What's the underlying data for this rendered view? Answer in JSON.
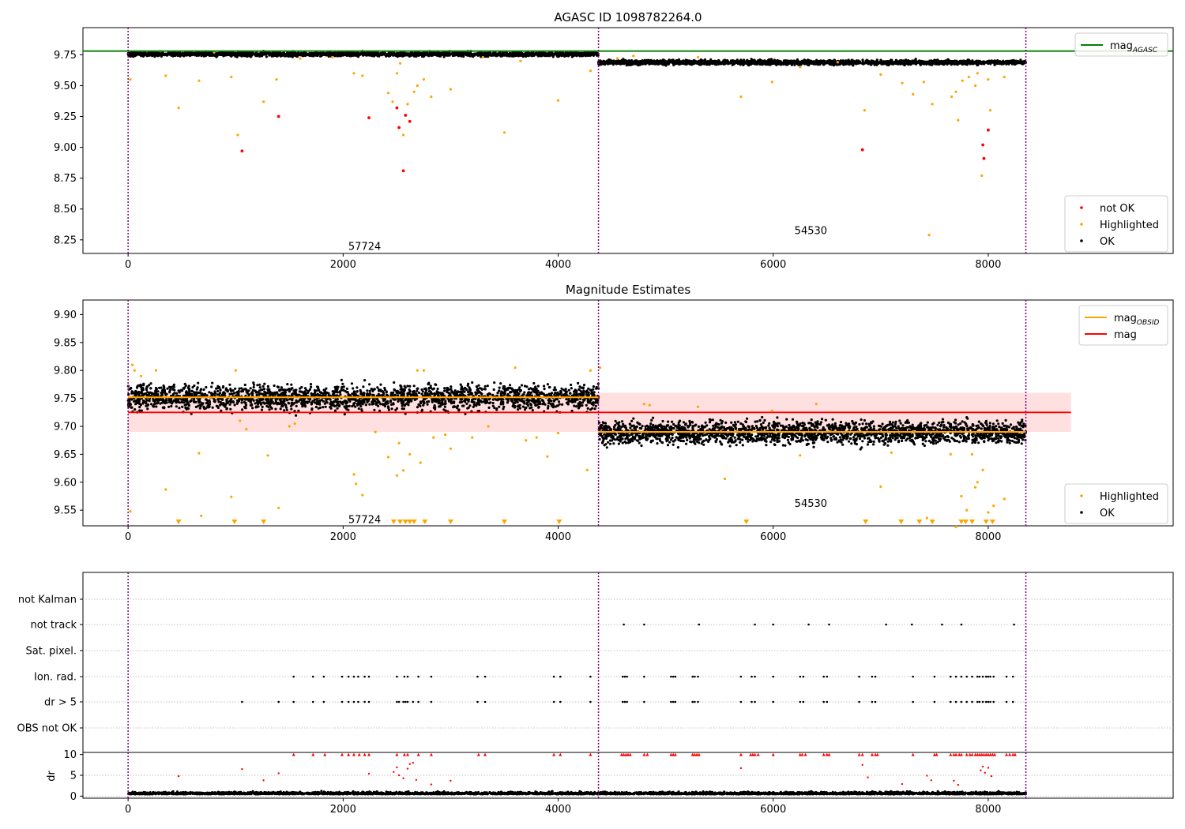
{
  "chart_data": [
    {
      "type": "scatter",
      "title": "AGASC ID 1098782264.0",
      "xlim": [
        -420,
        9720
      ],
      "ylim": [
        8.14,
        9.97
      ],
      "xticks": [
        0,
        2000,
        4000,
        6000,
        8000
      ],
      "yticks": [
        8.25,
        8.5,
        8.75,
        9.0,
        9.25,
        9.5,
        9.75
      ],
      "ytick_labels": [
        "8.25",
        "8.50",
        "8.75",
        "9.00",
        "9.25",
        "9.50",
        "9.75"
      ],
      "obsid_boundaries": [
        0,
        4375,
        8350
      ],
      "obsid_labels": [
        {
          "text": "57724",
          "x": 2200,
          "y": 8.2
        },
        {
          "text": "54530",
          "x": 6350,
          "y": 8.33
        }
      ],
      "hlines": [
        {
          "name": "mag_AGASC",
          "y": 9.78,
          "color": "#008000"
        }
      ],
      "bands": [
        {
          "x": [
            0,
            4375
          ],
          "center": 9.755,
          "spread": 0.012
        },
        {
          "x": [
            4375,
            8350
          ],
          "center": 9.688,
          "spread": 0.013
        }
      ],
      "highlighted_points": [
        [
          20,
          9.55
        ],
        [
          350,
          9.58
        ],
        [
          470,
          9.32
        ],
        [
          660,
          9.54
        ],
        [
          960,
          9.57
        ],
        [
          1020,
          9.1
        ],
        [
          1260,
          9.37
        ],
        [
          1380,
          9.55
        ],
        [
          2100,
          9.6
        ],
        [
          2180,
          9.58
        ],
        [
          2420,
          9.44
        ],
        [
          2460,
          9.37
        ],
        [
          2500,
          9.6
        ],
        [
          2530,
          9.68
        ],
        [
          2560,
          9.1
        ],
        [
          2600,
          9.35
        ],
        [
          2660,
          9.45
        ],
        [
          2690,
          9.5
        ],
        [
          2750,
          9.55
        ],
        [
          2820,
          9.41
        ],
        [
          3000,
          9.47
        ],
        [
          3500,
          9.12
        ],
        [
          4000,
          9.38
        ],
        [
          4300,
          9.62
        ],
        [
          5700,
          9.41
        ],
        [
          5990,
          9.53
        ],
        [
          6850,
          9.3
        ],
        [
          7000,
          9.59
        ],
        [
          7200,
          9.52
        ],
        [
          7300,
          9.43
        ],
        [
          7400,
          9.53
        ],
        [
          7450,
          8.29
        ],
        [
          7480,
          9.35
        ],
        [
          7660,
          9.41
        ],
        [
          7700,
          9.45
        ],
        [
          7720,
          9.22
        ],
        [
          7760,
          9.54
        ],
        [
          7820,
          9.57
        ],
        [
          7880,
          9.5
        ],
        [
          7900,
          9.6
        ],
        [
          7940,
          8.77
        ],
        [
          8000,
          9.55
        ],
        [
          8020,
          9.3
        ],
        [
          8150,
          9.57
        ],
        [
          300,
          9.78
        ],
        [
          800,
          9.77
        ],
        [
          1600,
          9.72
        ],
        [
          1900,
          9.73
        ],
        [
          3300,
          9.73
        ],
        [
          3650,
          9.7
        ],
        [
          4550,
          9.72
        ],
        [
          4700,
          9.74
        ],
        [
          5300,
          9.73
        ],
        [
          6250,
          9.65
        ],
        [
          6600,
          9.69
        ]
      ],
      "not_ok_points": [
        [
          1060,
          8.97
        ],
        [
          1400,
          9.25
        ],
        [
          2240,
          9.24
        ],
        [
          2500,
          9.32
        ],
        [
          2520,
          9.16
        ],
        [
          2560,
          8.81
        ],
        [
          2580,
          9.26
        ],
        [
          2620,
          9.21
        ],
        [
          6830,
          8.98
        ],
        [
          7950,
          9.02
        ],
        [
          7960,
          8.91
        ],
        [
          8000,
          9.14
        ]
      ],
      "legend_top": [
        {
          "label": "mag",
          "sub": "AGASC",
          "kind": "line",
          "color": "#008000"
        }
      ],
      "legend_bottom": [
        {
          "label": "not OK",
          "kind": "dot",
          "color": "#ff0000"
        },
        {
          "label": "Highlighted",
          "kind": "dot",
          "color": "#ffa500"
        },
        {
          "label": "OK",
          "kind": "dot",
          "color": "#000000"
        }
      ]
    },
    {
      "type": "scatter",
      "title": "Magnitude Estimates",
      "xlim": [
        -420,
        9720
      ],
      "ylim": [
        9.522,
        9.926
      ],
      "xticks": [
        0,
        2000,
        4000,
        6000,
        8000
      ],
      "yticks": [
        9.55,
        9.6,
        9.65,
        9.7,
        9.75,
        9.8,
        9.85,
        9.9
      ],
      "ytick_labels": [
        "9.55",
        "9.60",
        "9.65",
        "9.70",
        "9.75",
        "9.80",
        "9.85",
        "9.90"
      ],
      "obsid_boundaries": [
        0,
        4375,
        8350
      ],
      "obsid_labels": [
        {
          "text": "57724",
          "x": 2200,
          "y": 9.534
        },
        {
          "text": "54530",
          "x": 6350,
          "y": 9.563
        }
      ],
      "mag": 9.725,
      "mag_band": [
        9.69,
        9.76
      ],
      "mag_band_x": [
        0,
        8770
      ],
      "obsid_mags": [
        {
          "x": [
            0,
            4375
          ],
          "value": 9.752
        },
        {
          "x": [
            4375,
            8350
          ],
          "value": 9.69
        }
      ],
      "bands": [
        {
          "x": [
            0,
            4375
          ],
          "center": 9.752,
          "spread": 0.016
        },
        {
          "x": [
            4375,
            8350
          ],
          "center": 9.689,
          "spread": 0.014
        }
      ],
      "highlighted_points": [
        [
          20,
          9.548
        ],
        [
          40,
          9.81
        ],
        [
          60,
          9.8
        ],
        [
          120,
          9.79
        ],
        [
          260,
          9.8
        ],
        [
          350,
          9.587
        ],
        [
          660,
          9.652
        ],
        [
          680,
          9.54
        ],
        [
          960,
          9.574
        ],
        [
          1000,
          9.8
        ],
        [
          1040,
          9.71
        ],
        [
          1100,
          9.695
        ],
        [
          1300,
          9.648
        ],
        [
          1400,
          9.554
        ],
        [
          1500,
          9.7
        ],
        [
          1550,
          9.705
        ],
        [
          2100,
          9.614
        ],
        [
          2120,
          9.597
        ],
        [
          2180,
          9.577
        ],
        [
          2300,
          9.69
        ],
        [
          2420,
          9.645
        ],
        [
          2500,
          9.612
        ],
        [
          2520,
          9.67
        ],
        [
          2560,
          9.621
        ],
        [
          2620,
          9.65
        ],
        [
          2690,
          9.8
        ],
        [
          2720,
          9.635
        ],
        [
          2750,
          9.8
        ],
        [
          2840,
          9.68
        ],
        [
          2950,
          9.685
        ],
        [
          3000,
          9.66
        ],
        [
          3200,
          9.68
        ],
        [
          3350,
          9.7
        ],
        [
          3600,
          9.805
        ],
        [
          3700,
          9.675
        ],
        [
          3800,
          9.68
        ],
        [
          3900,
          9.646
        ],
        [
          4000,
          9.688
        ],
        [
          4270,
          9.622
        ],
        [
          4300,
          9.8
        ],
        [
          4390,
          9.805
        ],
        [
          4800,
          9.74
        ],
        [
          4850,
          9.738
        ],
        [
          5300,
          9.735
        ],
        [
          5550,
          9.606
        ],
        [
          5990,
          9.728
        ],
        [
          6250,
          9.648
        ],
        [
          6400,
          9.74
        ],
        [
          7000,
          9.592
        ],
        [
          7100,
          9.653
        ],
        [
          7430,
          9.536
        ],
        [
          7650,
          9.65
        ],
        [
          7700,
          9.52
        ],
        [
          7750,
          9.575
        ],
        [
          7800,
          9.55
        ],
        [
          7850,
          9.65
        ],
        [
          7880,
          9.591
        ],
        [
          7900,
          9.6
        ],
        [
          7950,
          9.622
        ],
        [
          8000,
          9.546
        ],
        [
          8050,
          9.558
        ],
        [
          8150,
          9.57
        ]
      ],
      "clipped_points_x": [
        470,
        990,
        1260,
        2470,
        2530,
        2580,
        2620,
        2660,
        2760,
        3000,
        3500,
        4010,
        5750,
        6860,
        7190,
        7360,
        7480,
        7750,
        7790,
        7850,
        7980,
        8040
      ],
      "legend_top": [
        {
          "label": "mag",
          "sub": "OBSID",
          "kind": "line",
          "color": "#ffa500"
        },
        {
          "label": "mag",
          "kind": "line",
          "color": "#ff0000"
        }
      ],
      "legend_bottom": [
        {
          "label": "Highlighted",
          "kind": "dot",
          "color": "#ffa500"
        },
        {
          "label": "OK",
          "kind": "dot",
          "color": "#000000"
        }
      ]
    },
    {
      "type": "scatter",
      "xlim": [
        -420,
        9720
      ],
      "xticks": [
        0,
        2000,
        4000,
        6000,
        8000
      ],
      "obsid_boundaries": [
        0,
        4375,
        8350
      ],
      "flag_rows": [
        "not Kalman",
        "not track",
        "Sat. pixel.",
        "Ion. rad.",
        "dr > 5",
        "OBS not OK"
      ],
      "flag_points": {
        "not Kalman": [],
        "not track": [
          4610,
          4800,
          5310,
          5830,
          6000,
          6330,
          6520,
          7050,
          7290,
          7570,
          7750,
          8240
        ],
        "Sat. pixel.": [],
        "Ion. rad.": [
          1540,
          1720,
          1820,
          1990,
          2050,
          2100,
          2140,
          2200,
          2240,
          2500,
          2570,
          2600,
          2700,
          2820,
          3250,
          3320,
          3960,
          4020,
          4300,
          4600,
          4620,
          4640,
          4800,
          5050,
          5070,
          5090,
          5250,
          5270,
          5300,
          5700,
          5800,
          5830,
          6000,
          6250,
          6280,
          6470,
          6500,
          6800,
          6920,
          6950,
          7300,
          7500,
          7650,
          7700,
          7750,
          7800,
          7850,
          7900,
          7920,
          7950,
          7980,
          8000,
          8020,
          8050,
          8170,
          8230
        ],
        "dr > 5": [
          1060,
          1400,
          1540,
          1720,
          1820,
          1990,
          2050,
          2100,
          2140,
          2200,
          2240,
          2500,
          2520,
          2560,
          2580,
          2600,
          2650,
          2700,
          2820,
          3250,
          3320,
          3960,
          4020,
          4300,
          4600,
          4620,
          4640,
          4800,
          5050,
          5070,
          5090,
          5250,
          5270,
          5300,
          5700,
          5800,
          5830,
          6000,
          6250,
          6280,
          6470,
          6500,
          6800,
          6920,
          6950,
          7300,
          7500,
          7650,
          7700,
          7750,
          7800,
          7850,
          7900,
          7920,
          7950,
          7980,
          8000,
          8020,
          8050,
          8170,
          8230
        ],
        "OBS not OK": []
      },
      "dr_ylabel": "dr",
      "dr_ylim": [
        -0.5,
        10.5
      ],
      "dr_yticks": [
        0,
        5,
        10
      ],
      "dr_red_points": [
        [
          470,
          4.8
        ],
        [
          1060,
          6.5
        ],
        [
          1260,
          3.8
        ],
        [
          1400,
          5.5
        ],
        [
          2240,
          5.4
        ],
        [
          2470,
          5.8
        ],
        [
          2500,
          6.9
        ],
        [
          2520,
          5
        ],
        [
          2560,
          4.3
        ],
        [
          2600,
          6.6
        ],
        [
          2620,
          7.7
        ],
        [
          2650,
          8
        ],
        [
          2680,
          3.9
        ],
        [
          2820,
          2.8
        ],
        [
          3000,
          3.7
        ],
        [
          5700,
          6.7
        ],
        [
          6830,
          7.5
        ],
        [
          6880,
          4.5
        ],
        [
          7200,
          2.9
        ],
        [
          7430,
          4.9
        ],
        [
          7470,
          3.8
        ],
        [
          7680,
          3.7
        ],
        [
          7720,
          2.7
        ],
        [
          7930,
          6.2
        ],
        [
          7950,
          7.1
        ],
        [
          7970,
          5.6
        ],
        [
          8000,
          6.8
        ],
        [
          8030,
          4.8
        ]
      ],
      "dr_capped_x": [
        1540,
        1720,
        1830,
        1990,
        2050,
        2100,
        2150,
        2200,
        2240,
        2500,
        2570,
        2600,
        2700,
        2820,
        3260,
        3320,
        3960,
        4020,
        4300,
        4590,
        4610,
        4630,
        4650,
        4670,
        4800,
        4830,
        5050,
        5070,
        5090,
        5250,
        5270,
        5290,
        5310,
        5700,
        5790,
        5810,
        5830,
        5860,
        6000,
        6250,
        6270,
        6300,
        6470,
        6500,
        6520,
        6800,
        6830,
        6920,
        6950,
        6970,
        7300,
        7500,
        7520,
        7650,
        7680,
        7700,
        7730,
        7750,
        7800,
        7830,
        7850,
        7880,
        7900,
        7920,
        7940,
        7960,
        7980,
        8000,
        8020,
        8040,
        8060,
        8170,
        8200,
        8230,
        8250
      ]
    }
  ]
}
